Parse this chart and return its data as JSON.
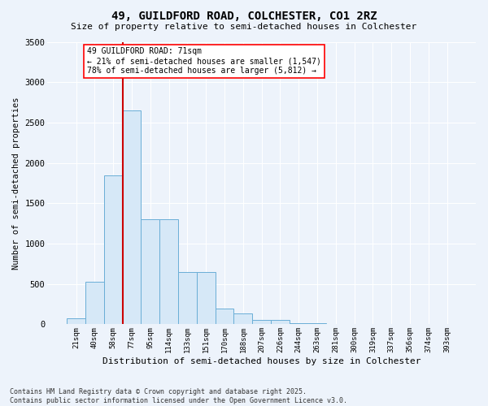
{
  "title_line1": "49, GUILDFORD ROAD, COLCHESTER, CO1 2RZ",
  "title_line2": "Size of property relative to semi-detached houses in Colchester",
  "xlabel": "Distribution of semi-detached houses by size in Colchester",
  "ylabel": "Number of semi-detached properties",
  "footnote": "Contains HM Land Registry data © Crown copyright and database right 2025.\nContains public sector information licensed under the Open Government Licence v3.0.",
  "bar_labels": [
    "21sqm",
    "40sqm",
    "58sqm",
    "77sqm",
    "95sqm",
    "114sqm",
    "133sqm",
    "151sqm",
    "170sqm",
    "188sqm",
    "207sqm",
    "226sqm",
    "244sqm",
    "263sqm",
    "281sqm",
    "300sqm",
    "319sqm",
    "337sqm",
    "356sqm",
    "374sqm",
    "393sqm"
  ],
  "bar_values": [
    75,
    530,
    1850,
    2650,
    1300,
    1300,
    650,
    650,
    200,
    130,
    50,
    50,
    15,
    15,
    8,
    5,
    4,
    3,
    2,
    2,
    2
  ],
  "bar_color": "#d6e8f7",
  "bar_edge_color": "#6aaed6",
  "vline_color": "#cc0000",
  "vline_x": 2.5,
  "ylim_max": 3500,
  "yticks": [
    0,
    500,
    1000,
    1500,
    2000,
    2500,
    3000,
    3500
  ],
  "annotation_title": "49 GUILDFORD ROAD: 71sqm",
  "annotation_line2": "← 21% of semi-detached houses are smaller (1,547)",
  "annotation_line3": "78% of semi-detached houses are larger (5,812) →",
  "bg_color": "#edf3fb",
  "grid_color": "#ffffff",
  "footnote_fontsize": 6.0
}
